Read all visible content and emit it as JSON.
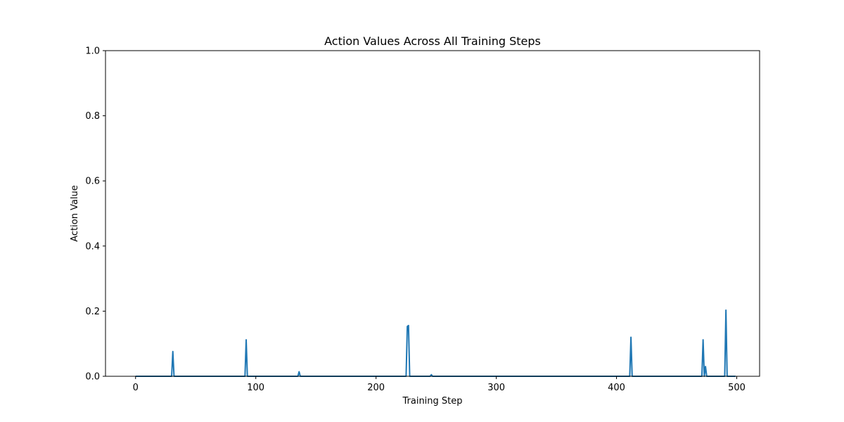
{
  "chart_data": {
    "type": "line",
    "title": "Action Values Across All Training Steps",
    "xlabel": "Training Step",
    "ylabel": "Action Value",
    "xlim": [
      -25,
      519
    ],
    "ylim": [
      0,
      1
    ],
    "xticks": [
      0,
      100,
      200,
      300,
      400,
      500
    ],
    "yticks": [
      0.0,
      0.2,
      0.4,
      0.6,
      0.8,
      1.0
    ],
    "ytick_labels": [
      "0.0",
      "0.2",
      "0.4",
      "0.6",
      "0.8",
      "1.0"
    ],
    "grid": false,
    "series": [
      {
        "color": "#1f77b4",
        "x": [
          0,
          30,
          31,
          32,
          91,
          92,
          93,
          135,
          136,
          137,
          225,
          226,
          227,
          228,
          245,
          246,
          247,
          411,
          412,
          413,
          471,
          472,
          473,
          474,
          475,
          490,
          491,
          492,
          499
        ],
        "y": [
          0,
          0,
          0.076,
          0,
          0,
          0.112,
          0,
          0,
          0.014,
          0,
          0,
          0.153,
          0.156,
          0,
          0,
          0.005,
          0,
          0,
          0.12,
          0,
          0,
          0.112,
          0,
          0.03,
          0,
          0,
          0.203,
          0,
          0
        ]
      }
    ]
  }
}
